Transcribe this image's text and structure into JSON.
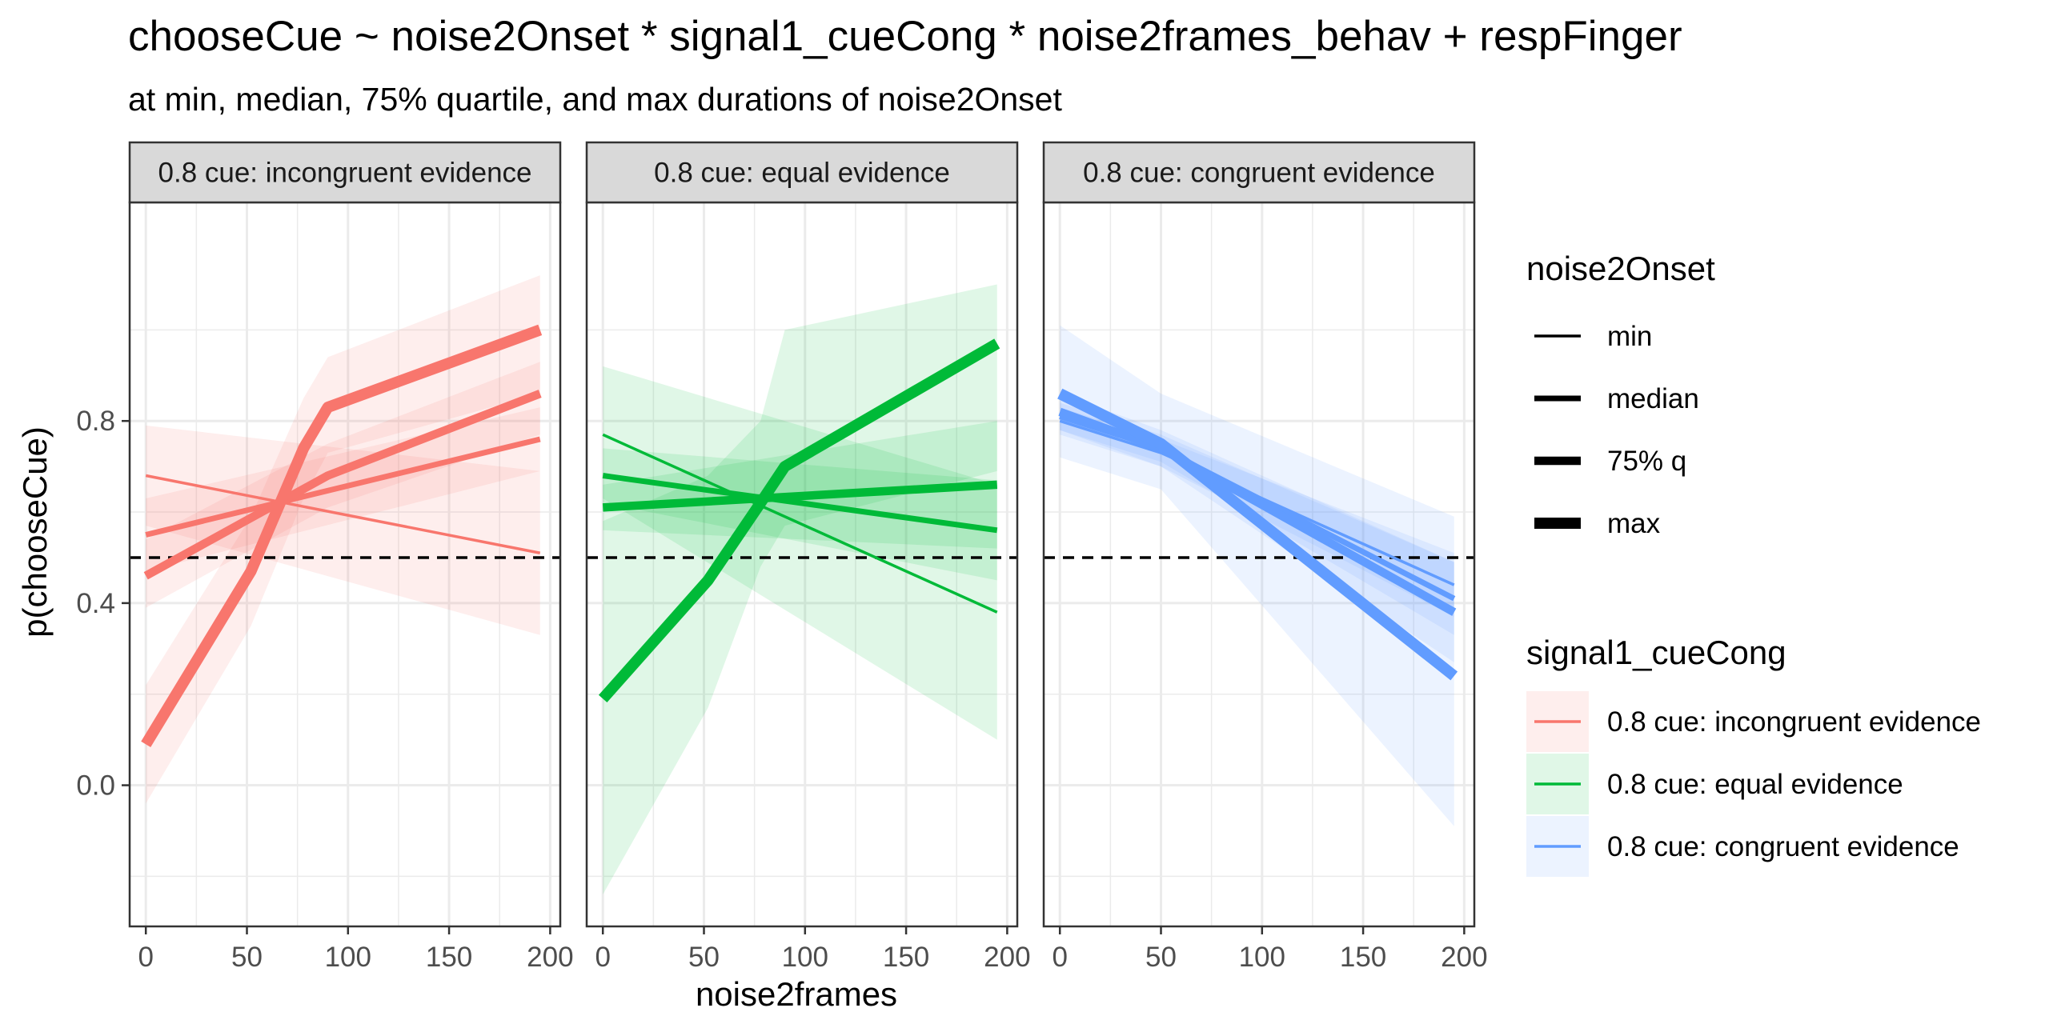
{
  "chart_data": {
    "type": "line",
    "title": "chooseCue ~ noise2Onset * signal1_cueCong * noise2frames_behav + respFinger",
    "subtitle": "at min, median, 75% quartile, and max durations of noise2Onset",
    "xlabel": "noise2frames",
    "ylabel": "p(chooseCue)",
    "xlim": [
      -8,
      205
    ],
    "ylim": [
      -0.31,
      1.28
    ],
    "x_ticks": [
      0,
      50,
      100,
      150,
      200
    ],
    "y_ticks": [
      0.0,
      0.4,
      0.8
    ],
    "x_tick_labels": [
      "0",
      "50",
      "100",
      "150",
      "200"
    ],
    "y_tick_labels": [
      "0.0",
      "0.4",
      "0.8"
    ],
    "reference_line": {
      "y": 0.5,
      "style": "dashed",
      "color": "#000000"
    },
    "grid": true,
    "legend_position": "right",
    "colors": {
      "incongruent": "#F8766D",
      "equal": "#00BA38",
      "congruent": "#619CFF",
      "strip_fill": "#D9D9D9",
      "grid": "#EBEBEB",
      "panel_border": "#333333"
    },
    "legend_linetype": {
      "title": "noise2Onset",
      "items": [
        {
          "label": "min",
          "width": 1
        },
        {
          "label": "median",
          "width": 2
        },
        {
          "label": "75% q",
          "width": 3
        },
        {
          "label": "max",
          "width": 4
        }
      ]
    },
    "legend_color": {
      "title": "signal1_cueCong",
      "items": [
        {
          "label": "0.8 cue: incongruent evidence",
          "color": "#F8766D"
        },
        {
          "label": "0.8 cue: equal evidence",
          "color": "#00BA38"
        },
        {
          "label": "0.8 cue: congruent evidence",
          "color": "#619CFF"
        }
      ]
    },
    "panels": [
      {
        "strip": "0.8 cue: incongruent evidence",
        "color": "#F8766D",
        "series": [
          {
            "name": "min",
            "width": 1,
            "x": [
              0,
              195
            ],
            "y": [
              0.68,
              0.51
            ],
            "ci_lo": [
              0.57,
              0.33
            ],
            "ci_hi": [
              0.79,
              0.69
            ]
          },
          {
            "name": "median",
            "width": 2,
            "x": [
              0,
              195
            ],
            "y": [
              0.55,
              0.76
            ],
            "ci_lo": [
              0.47,
              0.69
            ],
            "ci_hi": [
              0.63,
              0.83
            ]
          },
          {
            "name": "75% q",
            "width": 3,
            "x": [
              0,
              90,
              195
            ],
            "y": [
              0.46,
              0.68,
              0.86
            ],
            "ci_lo": [
              0.39,
              0.61,
              0.77
            ],
            "ci_hi": [
              0.54,
              0.75,
              0.93
            ]
          },
          {
            "name": "max",
            "width": 4,
            "x": [
              0,
              52,
              78,
              90,
              195
            ],
            "y": [
              0.09,
              0.47,
              0.74,
              0.83,
              1.0
            ],
            "ci_lo": [
              -0.04,
              0.35,
              0.63,
              0.73,
              0.86
            ],
            "ci_hi": [
              0.22,
              0.59,
              0.85,
              0.94,
              1.12
            ]
          }
        ]
      },
      {
        "strip": "0.8 cue: equal evidence",
        "color": "#00BA38",
        "series": [
          {
            "name": "min",
            "width": 1,
            "x": [
              0,
              195
            ],
            "y": [
              0.77,
              0.38
            ],
            "ci_lo": [
              0.63,
              0.1
            ],
            "ci_hi": [
              0.92,
              0.66
            ]
          },
          {
            "name": "median",
            "width": 2,
            "x": [
              0,
              195
            ],
            "y": [
              0.68,
              0.56
            ],
            "ci_lo": [
              0.62,
              0.45
            ],
            "ci_hi": [
              0.74,
              0.67
            ]
          },
          {
            "name": "75% q",
            "width": 3,
            "x": [
              0,
              195
            ],
            "y": [
              0.61,
              0.66
            ],
            "ci_lo": [
              0.56,
              0.52
            ],
            "ci_hi": [
              0.66,
              0.8
            ]
          },
          {
            "name": "max",
            "width": 4,
            "x": [
              0,
              52,
              78,
              90,
              195
            ],
            "y": [
              0.19,
              0.45,
              0.62,
              0.7,
              0.97
            ],
            "ci_lo": [
              -0.24,
              0.17,
              0.48,
              0.57,
              0.69
            ],
            "ci_hi": [
              0.58,
              0.68,
              0.8,
              1.0,
              1.1
            ]
          }
        ]
      },
      {
        "strip": "0.8 cue: congruent evidence",
        "color": "#619CFF",
        "series": [
          {
            "name": "min",
            "width": 1,
            "x": [
              0,
              50,
              195
            ],
            "y": [
              0.8,
              0.73,
              0.44
            ],
            "ci_lo": [
              0.77,
              0.7,
              0.37
            ],
            "ci_hi": [
              0.83,
              0.76,
              0.51
            ]
          },
          {
            "name": "median",
            "width": 2,
            "x": [
              0,
              50,
              195
            ],
            "y": [
              0.81,
              0.74,
              0.41
            ],
            "ci_lo": [
              0.78,
              0.71,
              0.33
            ],
            "ci_hi": [
              0.84,
              0.77,
              0.49
            ]
          },
          {
            "name": "75% q",
            "width": 3,
            "x": [
              0,
              50,
              195
            ],
            "y": [
              0.82,
              0.74,
              0.38
            ],
            "ci_lo": [
              0.78,
              0.7,
              0.27
            ],
            "ci_hi": [
              0.86,
              0.78,
              0.49
            ]
          },
          {
            "name": "max",
            "width": 4,
            "x": [
              0,
              50,
              195
            ],
            "y": [
              0.86,
              0.75,
              0.24
            ],
            "ci_lo": [
              0.72,
              0.65,
              -0.09
            ],
            "ci_hi": [
              1.01,
              0.86,
              0.59
            ]
          }
        ]
      }
    ]
  }
}
